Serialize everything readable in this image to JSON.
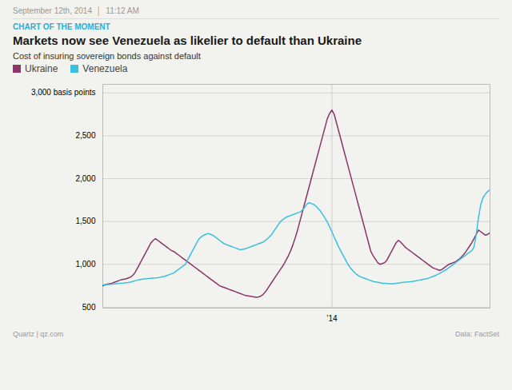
{
  "chart_data": {
    "type": "line",
    "title": "Markets now see Venezuela as likelier to default than Ukraine",
    "subtitle": "CHART OF THE MOMENT",
    "ylabel": "Cost of insuring sovereign bonds against default",
    "date_label": "September 12th, 2014  │  11:12 AM",
    "credit": "Quartz | qz.com",
    "source": "Data: FactSet",
    "legend": "top",
    "grid": true,
    "ylim": [
      490,
      3100
    ],
    "yticks": [
      500,
      {
        "value": 1000,
        "label": "1,000"
      },
      {
        "value": 1500,
        "label": "1,500"
      },
      {
        "value": 2000,
        "label": "2,000"
      },
      {
        "value": 2500,
        "label": "2,500"
      },
      {
        "value": 3000,
        "label": "3,000 basis points"
      }
    ],
    "categories": [
      null,
      null,
      null,
      null,
      null,
      null,
      null,
      null,
      null,
      null,
      null,
      null,
      null,
      null,
      null,
      null,
      null,
      null,
      null,
      null,
      null,
      null,
      null,
      null,
      null,
      null,
      null,
      null,
      null,
      null,
      null,
      null,
      null,
      null,
      null,
      null,
      null,
      null,
      null,
      null,
      null,
      null,
      null,
      null,
      null,
      null,
      null,
      null,
      null,
      null,
      null,
      null,
      null,
      null,
      null,
      null,
      null,
      null,
      null,
      null,
      null,
      null,
      null,
      null,
      null,
      null,
      null,
      null,
      null,
      null,
      null,
      null,
      null,
      null,
      null,
      null,
      null,
      null,
      null,
      null,
      null,
      null,
      null,
      null,
      null,
      null,
      null,
      null,
      null,
      null,
      null,
      null,
      null,
      null,
      null,
      null,
      null,
      null,
      null,
      null,
      "’14",
      null,
      null,
      null,
      null,
      null,
      null,
      null,
      null,
      null,
      null,
      null,
      null,
      null,
      null,
      null,
      null,
      null,
      null,
      null,
      null,
      null,
      null,
      null,
      null,
      null,
      null,
      null,
      null,
      null,
      null,
      null,
      null,
      null,
      null,
      null,
      null,
      null,
      null,
      null,
      null,
      null,
      null,
      null,
      null,
      null,
      null,
      null,
      null,
      null,
      null,
      null,
      null,
      null,
      null,
      null,
      null,
      null,
      null,
      null,
      null,
      null,
      null,
      null,
      null,
      null,
      null,
      null,
      null,
      null
    ],
    "series": [
      {
        "name": "Ukraine",
        "color": "#8B3569",
        "values": [
          750,
          760,
          770,
          775,
          780,
          790,
          800,
          810,
          820,
          825,
          830,
          840,
          850,
          870,
          900,
          950,
          1000,
          1050,
          1100,
          1150,
          1200,
          1250,
          1280,
          1300,
          1280,
          1260,
          1240,
          1220,
          1200,
          1180,
          1160,
          1150,
          1130,
          1110,
          1090,
          1070,
          1050,
          1030,
          1010,
          990,
          970,
          950,
          930,
          910,
          890,
          870,
          850,
          830,
          810,
          790,
          770,
          750,
          740,
          730,
          720,
          710,
          700,
          690,
          680,
          670,
          660,
          650,
          640,
          635,
          630,
          625,
          620,
          615,
          620,
          630,
          650,
          680,
          720,
          760,
          800,
          840,
          880,
          920,
          960,
          1000,
          1050,
          1100,
          1160,
          1230,
          1310,
          1400,
          1500,
          1600,
          1700,
          1800,
          1900,
          2000,
          2100,
          2200,
          2300,
          2400,
          2500,
          2600,
          2700,
          2760,
          2800,
          2750,
          2650,
          2550,
          2450,
          2350,
          2250,
          2150,
          2050,
          1950,
          1850,
          1750,
          1650,
          1550,
          1450,
          1350,
          1250,
          1150,
          1100,
          1060,
          1020,
          1000,
          1010,
          1020,
          1050,
          1100,
          1150,
          1200,
          1250,
          1280,
          1260,
          1230,
          1200,
          1180,
          1160,
          1140,
          1120,
          1100,
          1080,
          1060,
          1040,
          1020,
          1000,
          980,
          960,
          950,
          940,
          930,
          940,
          960,
          980,
          1000,
          1010,
          1020,
          1030,
          1050,
          1070,
          1100,
          1130,
          1170,
          1210,
          1250,
          1300,
          1350,
          1400,
          1380,
          1360,
          1340,
          1350,
          1370
        ]
      },
      {
        "name": "Venezuela",
        "color": "#3BBFDF",
        "values": [
          760,
          762,
          764,
          766,
          770,
          772,
          775,
          778,
          780,
          782,
          785,
          788,
          792,
          800,
          808,
          815,
          820,
          825,
          830,
          832,
          835,
          838,
          840,
          842,
          845,
          850,
          855,
          860,
          870,
          880,
          890,
          900,
          920,
          940,
          960,
          980,
          1000,
          1050,
          1100,
          1150,
          1200,
          1250,
          1300,
          1320,
          1340,
          1350,
          1360,
          1350,
          1340,
          1320,
          1300,
          1280,
          1260,
          1240,
          1230,
          1220,
          1210,
          1200,
          1190,
          1180,
          1170,
          1175,
          1180,
          1190,
          1200,
          1210,
          1220,
          1230,
          1240,
          1250,
          1260,
          1280,
          1300,
          1330,
          1360,
          1400,
          1440,
          1480,
          1510,
          1530,
          1550,
          1560,
          1570,
          1580,
          1590,
          1600,
          1610,
          1630,
          1660,
          1700,
          1720,
          1710,
          1700,
          1680,
          1650,
          1620,
          1580,
          1540,
          1490,
          1440,
          1380,
          1320,
          1260,
          1200,
          1150,
          1100,
          1050,
          1000,
          960,
          930,
          900,
          880,
          860,
          850,
          840,
          830,
          820,
          810,
          800,
          795,
          790,
          785,
          780,
          778,
          776,
          774,
          772,
          775,
          778,
          782,
          786,
          790,
          792,
          795,
          798,
          800,
          805,
          810,
          815,
          820,
          825,
          830,
          838,
          848,
          858,
          868,
          880,
          895,
          910,
          925,
          940,
          960,
          980,
          1000,
          1020,
          1040,
          1060,
          1080,
          1100,
          1120,
          1140,
          1160,
          1200,
          1350,
          1550,
          1700,
          1780,
          1820,
          1850,
          1870
        ]
      }
    ]
  }
}
